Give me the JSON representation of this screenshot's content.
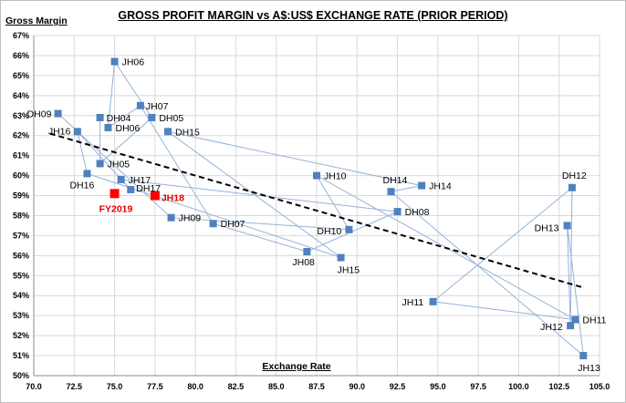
{
  "chart_data": {
    "type": "scatter",
    "title": "GROSS PROFIT MARGIN vs A$:US$ EXCHANGE RATE (PRIOR PERIOD)",
    "xlabel": "Exchange Rate",
    "ylabel": "Gross Margin",
    "xlim": [
      70.0,
      105.0
    ],
    "ylim": [
      50,
      67
    ],
    "x_ticks": [
      "70.0",
      "72.5",
      "75.0",
      "77.5",
      "80.0",
      "82.5",
      "85.0",
      "87.5",
      "90.0",
      "92.5",
      "95.0",
      "97.5",
      "100.0",
      "102.5",
      "105.0"
    ],
    "y_ticks": [
      "50%",
      "51%",
      "52%",
      "53%",
      "54%",
      "55%",
      "56%",
      "57%",
      "58%",
      "59%",
      "60%",
      "61%",
      "62%",
      "63%",
      "64%",
      "65%",
      "66%",
      "67%"
    ],
    "grid": true,
    "legend": "none",
    "colors": {
      "points": "#4f81bd",
      "path": "#95b3d7",
      "highlight": "#ff0000",
      "trend": "#000000",
      "grid": "#d9d9d9"
    },
    "series": [
      {
        "points": [
          {
            "label": "DH09",
            "x": 71.5,
            "y": 63.1
          },
          {
            "label": "JH09",
            "x": 78.5,
            "y": 57.9
          },
          {
            "label": "DH10",
            "x": 89.5,
            "y": 57.3
          },
          {
            "label": "JH10",
            "x": 87.5,
            "y": 60.0
          },
          {
            "label": "DH11",
            "x": 103.5,
            "y": 52.8
          },
          {
            "label": "JH11",
            "x": 94.7,
            "y": 53.7
          },
          {
            "label": "DH12",
            "x": 103.3,
            "y": 59.4
          },
          {
            "label": "JH12",
            "x": 103.2,
            "y": 52.5
          },
          {
            "label": "DH13",
            "x": 103.0,
            "y": 57.5
          },
          {
            "label": "JH13",
            "x": 104.0,
            "y": 51.0
          },
          {
            "label": "DH14",
            "x": 92.1,
            "y": 59.2
          },
          {
            "label": "JH14",
            "x": 94.0,
            "y": 59.5
          },
          {
            "label": "DH15",
            "x": 78.3,
            "y": 62.2
          },
          {
            "label": "JH15",
            "x": 89.0,
            "y": 55.9
          },
          {
            "label": "DH16",
            "x": 73.3,
            "y": 60.1
          },
          {
            "label": "JH16",
            "x": 72.7,
            "y": 62.2
          },
          {
            "label": "DH17",
            "x": 76.0,
            "y": 59.3
          },
          {
            "label": "JH17",
            "x": 75.4,
            "y": 59.8
          },
          {
            "label": "DH08",
            "x": 92.5,
            "y": 58.2
          },
          {
            "label": "JH08",
            "x": 86.9,
            "y": 56.2
          },
          {
            "label": "DH07",
            "x": 81.1,
            "y": 57.6
          },
          {
            "label": "JH07",
            "x": 76.6,
            "y": 63.5
          },
          {
            "label": "DH06",
            "x": 74.6,
            "y": 62.4
          },
          {
            "label": "JH06",
            "x": 75.0,
            "y": 65.7
          },
          {
            "label": "DH05",
            "x": 77.3,
            "y": 62.9
          },
          {
            "label": "JH05",
            "x": 74.1,
            "y": 60.6
          },
          {
            "label": "DH04",
            "x": 74.1,
            "y": 62.9
          }
        ]
      },
      {
        "points": [
          {
            "label": "FY2019",
            "x": 75.0,
            "y": 59.1
          },
          {
            "label": "JH18",
            "x": 77.5,
            "y": 59.0
          }
        ]
      }
    ],
    "trendline": [
      {
        "x": 71.0,
        "y": 62.1
      },
      {
        "x": 104.0,
        "y": 54.4
      }
    ]
  }
}
